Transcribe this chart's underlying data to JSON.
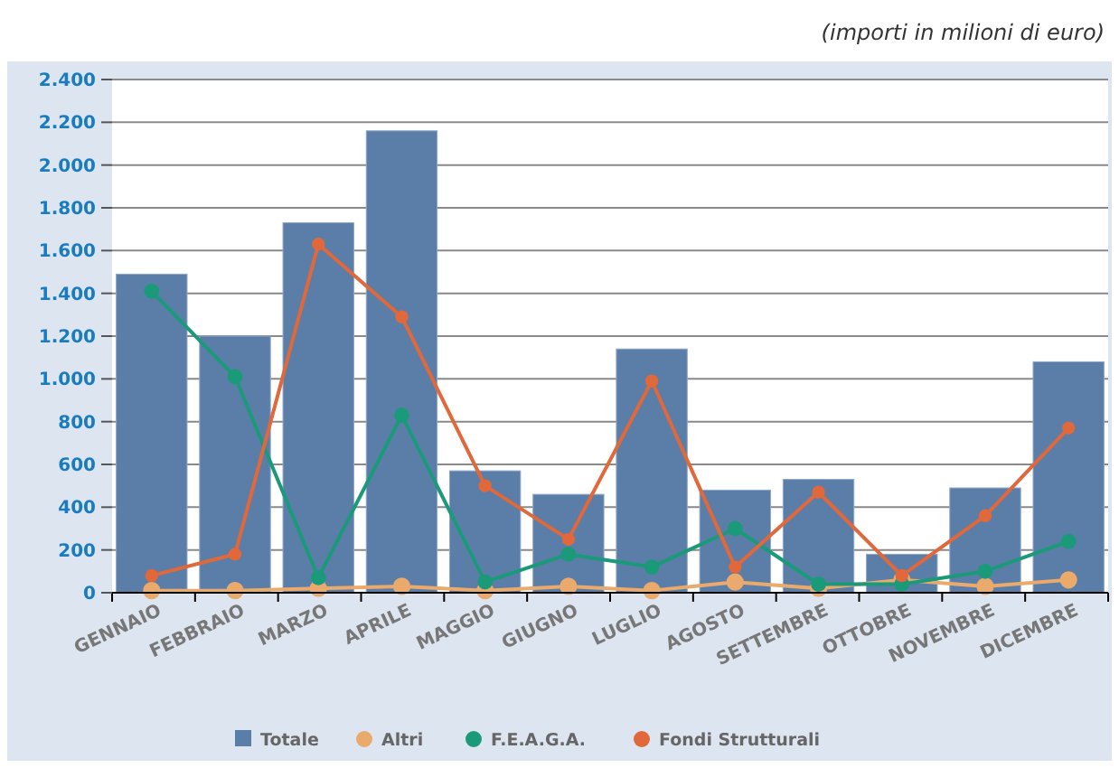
{
  "chart_data": {
    "type": "bar",
    "annotations": [
      "(importi in milioni di euro)"
    ],
    "categories": [
      "GENNAIO",
      "FEBBRAIO",
      "MARZO",
      "APRILE",
      "MAGGIO",
      "GIUGNO",
      "LUGLIO",
      "AGOSTO",
      "SETTEMBRE",
      "OTTOBRE",
      "NOVEMBRE",
      "DICEMBRE"
    ],
    "series": [
      {
        "name": "Totale",
        "color": "#5b7ea9",
        "values": [
          1490,
          1200,
          1730,
          2160,
          570,
          460,
          1140,
          480,
          530,
          180,
          490,
          1080
        ]
      },
      {
        "name": "Altri",
        "type": "line",
        "color": "#e9aa6c",
        "values": [
          10,
          10,
          20,
          30,
          10,
          30,
          10,
          50,
          20,
          60,
          30,
          60
        ]
      },
      {
        "name": "F.E.A.G.A.",
        "type": "line",
        "color": "#1b9a7a",
        "values": [
          1410,
          1010,
          70,
          830,
          50,
          180,
          120,
          300,
          40,
          40,
          100,
          240
        ]
      },
      {
        "name": "Fondi Strutturali",
        "type": "line",
        "color": "#e0683a",
        "values": [
          80,
          180,
          1630,
          1290,
          500,
          250,
          990,
          120,
          470,
          80,
          360,
          770
        ]
      }
    ],
    "ylim": [
      0,
      2400
    ],
    "yticks": [
      {
        "value": 0,
        "label": "0"
      },
      {
        "value": 200,
        "label": "200"
      },
      {
        "value": 400,
        "label": "400"
      },
      {
        "value": 600,
        "label": "600"
      },
      {
        "value": 800,
        "label": "800"
      },
      {
        "value": 1000,
        "label": "1.000"
      },
      {
        "value": 1200,
        "label": "1.200"
      },
      {
        "value": 1400,
        "label": "1.400"
      },
      {
        "value": 1600,
        "label": "1.600"
      },
      {
        "value": 1800,
        "label": "1.800"
      },
      {
        "value": 2000,
        "label": "2.000"
      },
      {
        "value": 2200,
        "label": "2.200"
      },
      {
        "value": 2400,
        "label": "2.400"
      }
    ],
    "grid": "y",
    "legend": "bottom",
    "marker": "circle",
    "line_style": "solid"
  }
}
